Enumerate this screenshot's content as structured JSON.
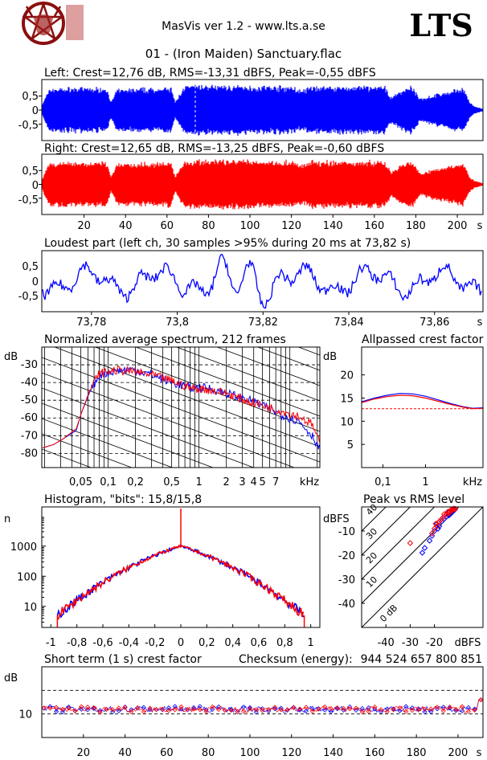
{
  "header": {
    "app_title": "MasVis ver 1.2 - www.lts.a.se",
    "brand": "LTS",
    "file_title": "01 - (Iron Maiden) Sanctuary.flac",
    "logo_icon": "pentagram-goat-logo"
  },
  "colors": {
    "left": "#0000ff",
    "right": "#ff0000",
    "frame": "#000000"
  },
  "chart_data": [
    {
      "id": "left",
      "type": "area",
      "title": "Left: Crest=12,76 dB, RMS=-13,31 dBFS, Peak=-0,55 dBFS",
      "yticks": [
        "0,5",
        "0",
        "-0,5"
      ],
      "ylim": [
        -1,
        1
      ],
      "xlim": [
        0,
        212
      ],
      "envelope_time": [
        0,
        2,
        4,
        31,
        33,
        36,
        62,
        64,
        68,
        74,
        120,
        125,
        130,
        165,
        168,
        175,
        178,
        182,
        203,
        206,
        208,
        212
      ],
      "envelope_amp": [
        0.25,
        0.6,
        0.85,
        0.85,
        0.3,
        0.8,
        0.85,
        0.3,
        0.9,
        0.95,
        0.9,
        0.75,
        0.9,
        0.9,
        0.5,
        0.85,
        0.9,
        0.45,
        0.85,
        0.3,
        0.15,
        0.05
      ],
      "marker_time": 73.82,
      "color": "#0000ff"
    },
    {
      "id": "right",
      "type": "area",
      "title": "Right: Crest=12,65 dB, RMS=-13,25 dBFS, Peak=-0,60 dBFS",
      "yticks": [
        "0,5",
        "0",
        "-0,5"
      ],
      "ylim": [
        -1,
        1
      ],
      "xlim": [
        0,
        212
      ],
      "envelope_time": [
        0,
        2,
        4,
        31,
        33,
        36,
        62,
        64,
        68,
        74,
        120,
        125,
        130,
        165,
        168,
        175,
        178,
        182,
        203,
        206,
        208,
        212
      ],
      "envelope_amp": [
        0.25,
        0.6,
        0.85,
        0.85,
        0.3,
        0.8,
        0.85,
        0.3,
        0.9,
        0.95,
        0.9,
        0.75,
        0.9,
        0.9,
        0.5,
        0.85,
        0.9,
        0.45,
        0.85,
        0.3,
        0.15,
        0.05
      ],
      "xticks": [
        20,
        40,
        60,
        80,
        100,
        120,
        140,
        160,
        180,
        200
      ],
      "xunit": "s",
      "color": "#ff0000"
    },
    {
      "id": "loudest",
      "type": "line",
      "title": "Loudest part (left  ch, 30 samples >95% during 20 ms at 73,82 s)",
      "yticks": [
        "0,5",
        "0",
        "-0,5"
      ],
      "ylim": [
        -1,
        1
      ],
      "xlim": [
        73.7686,
        73.8711
      ],
      "xticks": [
        73.78,
        73.8,
        73.82,
        73.84,
        73.86
      ],
      "xtick_labels": [
        "73,78",
        "73,8",
        "73,82",
        "73,84",
        "73,86"
      ],
      "xunit": "s",
      "color": "#0000ff"
    },
    {
      "id": "spectrum",
      "type": "line",
      "title": "Normalized average spectrum, 212 frames",
      "ylabel": "dB",
      "yticks": [
        -30,
        -40,
        -50,
        -60,
        -70,
        -80
      ],
      "ylim": [
        -88,
        -20
      ],
      "xticks": [
        0.05,
        0.1,
        0.2,
        0.5,
        1,
        2,
        3,
        4,
        5,
        7
      ],
      "xtick_labels": [
        "0,05",
        "0,1",
        "0,2",
        "0,5",
        "1",
        "2",
        "3",
        "4",
        "5",
        "7"
      ],
      "xunit": "kHz",
      "xlim_log10": [
        -1.73,
        1.33
      ],
      "freq_log10": [
        -1.73,
        -1.6,
        -1.5,
        -1.35,
        -1.3,
        -1.2,
        -1.1,
        -0.9,
        -0.7,
        -0.5,
        -0.3,
        -0.1,
        0.1,
        0.3,
        0.5,
        0.7,
        0.9,
        1.1,
        1.25,
        1.33
      ],
      "left_db": [
        -77,
        -75,
        -72,
        -67,
        -58,
        -45,
        -36,
        -33,
        -33,
        -36,
        -40,
        -43,
        -43,
        -46,
        -49,
        -53,
        -58,
        -62,
        -70,
        -78
      ],
      "right_db": [
        -77,
        -75,
        -72,
        -66,
        -58,
        -44,
        -35,
        -33,
        -34,
        -36,
        -39,
        -43,
        -44,
        -46,
        -50,
        -53,
        -56,
        -59,
        -64,
        -75
      ]
    },
    {
      "id": "crest",
      "type": "line",
      "title": "Allpassed crest factor",
      "ylabel": "dB",
      "yticks": [
        20,
        15,
        10,
        5
      ],
      "ylim": [
        0,
        26
      ],
      "xticks": [
        0.1,
        1
      ],
      "xtick_labels": [
        "0,1",
        "1"
      ],
      "xunit": "kHz",
      "xlim_log10": [
        -1.5,
        1.35
      ],
      "freq_log10": [
        -1.5,
        -1.2,
        -0.9,
        -0.6,
        -0.3,
        0,
        0.3,
        0.6,
        0.9,
        1.1,
        1.35
      ],
      "left": [
        14.2,
        15,
        15.6,
        16,
        15.9,
        15.4,
        14.6,
        13.8,
        13.1,
        12.8,
        12.9
      ],
      "right": [
        14.0,
        14.8,
        15.3,
        15.6,
        15.5,
        15.0,
        14.3,
        13.6,
        13.0,
        12.7,
        12.8
      ],
      "reference": 12.7
    },
    {
      "id": "histogram",
      "type": "line",
      "title": "Histogram, \"bits\": 15,8/15,8",
      "ylabel": "n",
      "yticks": [
        1000,
        100,
        10
      ],
      "ylim_log10": [
        0.3,
        4.3
      ],
      "xticks": [
        -1,
        -0.8,
        -0.6,
        -0.4,
        -0.2,
        0,
        0.2,
        0.4,
        0.6,
        0.8,
        1
      ],
      "xtick_labels": [
        "-1",
        "-0,8",
        "-0,6",
        "-0,4",
        "-0,2",
        "0",
        "0,2",
        "0,4",
        "0,6",
        "0,8",
        "1"
      ],
      "xlim": [
        -1.07,
        1.07
      ],
      "center_count": 1000,
      "edge_count": 5,
      "edge_level": 0.95
    },
    {
      "id": "peak_vs_rms",
      "type": "scatter",
      "title": "Peak vs RMS level",
      "ylabel": "dBFS",
      "xunit": "dBFS",
      "yticks": [
        -10,
        -20,
        -30,
        -40
      ],
      "xticks": [
        -40,
        -30,
        -20
      ],
      "xlim": [
        -50,
        0
      ],
      "ylim": [
        -50,
        0
      ],
      "crest_lines": [
        "0 dB",
        "10",
        "20",
        "30",
        "40"
      ],
      "left_points": [
        [
          -18,
          -8
        ],
        [
          -17,
          -6
        ],
        [
          -16,
          -5
        ],
        [
          -15,
          -4
        ],
        [
          -14,
          -3.5
        ],
        [
          -13.5,
          -3
        ],
        [
          -13,
          -2.5
        ],
        [
          -20,
          -10
        ],
        [
          -21,
          -12
        ],
        [
          -19,
          -7
        ],
        [
          -15,
          -3
        ],
        [
          -14,
          -2
        ],
        [
          -22,
          -14
        ],
        [
          -24,
          -17
        ],
        [
          -25,
          -19
        ],
        [
          -18.5,
          -9
        ],
        [
          -16.5,
          -4.5
        ],
        [
          -12.5,
          -2
        ],
        [
          -12,
          -1.5
        ],
        [
          -11.5,
          -1
        ]
      ],
      "right_points": [
        [
          -30,
          -15
        ],
        [
          -20,
          -9
        ],
        [
          -19,
          -8
        ],
        [
          -18,
          -6
        ],
        [
          -17,
          -5
        ],
        [
          -16,
          -4
        ],
        [
          -15,
          -3
        ],
        [
          -14,
          -2.5
        ],
        [
          -13.5,
          -2
        ],
        [
          -13,
          -1.5
        ],
        [
          -12.5,
          -1.2
        ],
        [
          -12,
          -1
        ],
        [
          -11.5,
          -0.8
        ],
        [
          -21,
          -11
        ],
        [
          -19.5,
          -7
        ],
        [
          -17.5,
          -5.5
        ],
        [
          -16,
          -3
        ],
        [
          -14.5,
          -2
        ],
        [
          -13,
          -1
        ],
        [
          -12,
          -0.7
        ]
      ]
    },
    {
      "id": "short_term_crest",
      "type": "line",
      "title": "Short term (1 s) crest factor",
      "checksum_label": "Checksum (energy):",
      "checksum_value": "944 524 657 800 851",
      "ylabel": "dB",
      "yticks": [
        10
      ],
      "ylim": [
        0,
        30
      ],
      "xlim": [
        0,
        212
      ],
      "xticks": [
        20,
        40,
        60,
        80,
        100,
        120,
        140,
        160,
        180,
        200
      ],
      "xunit": "s",
      "left_seed": 12,
      "right_seed": 12,
      "end_value": 16
    }
  ]
}
